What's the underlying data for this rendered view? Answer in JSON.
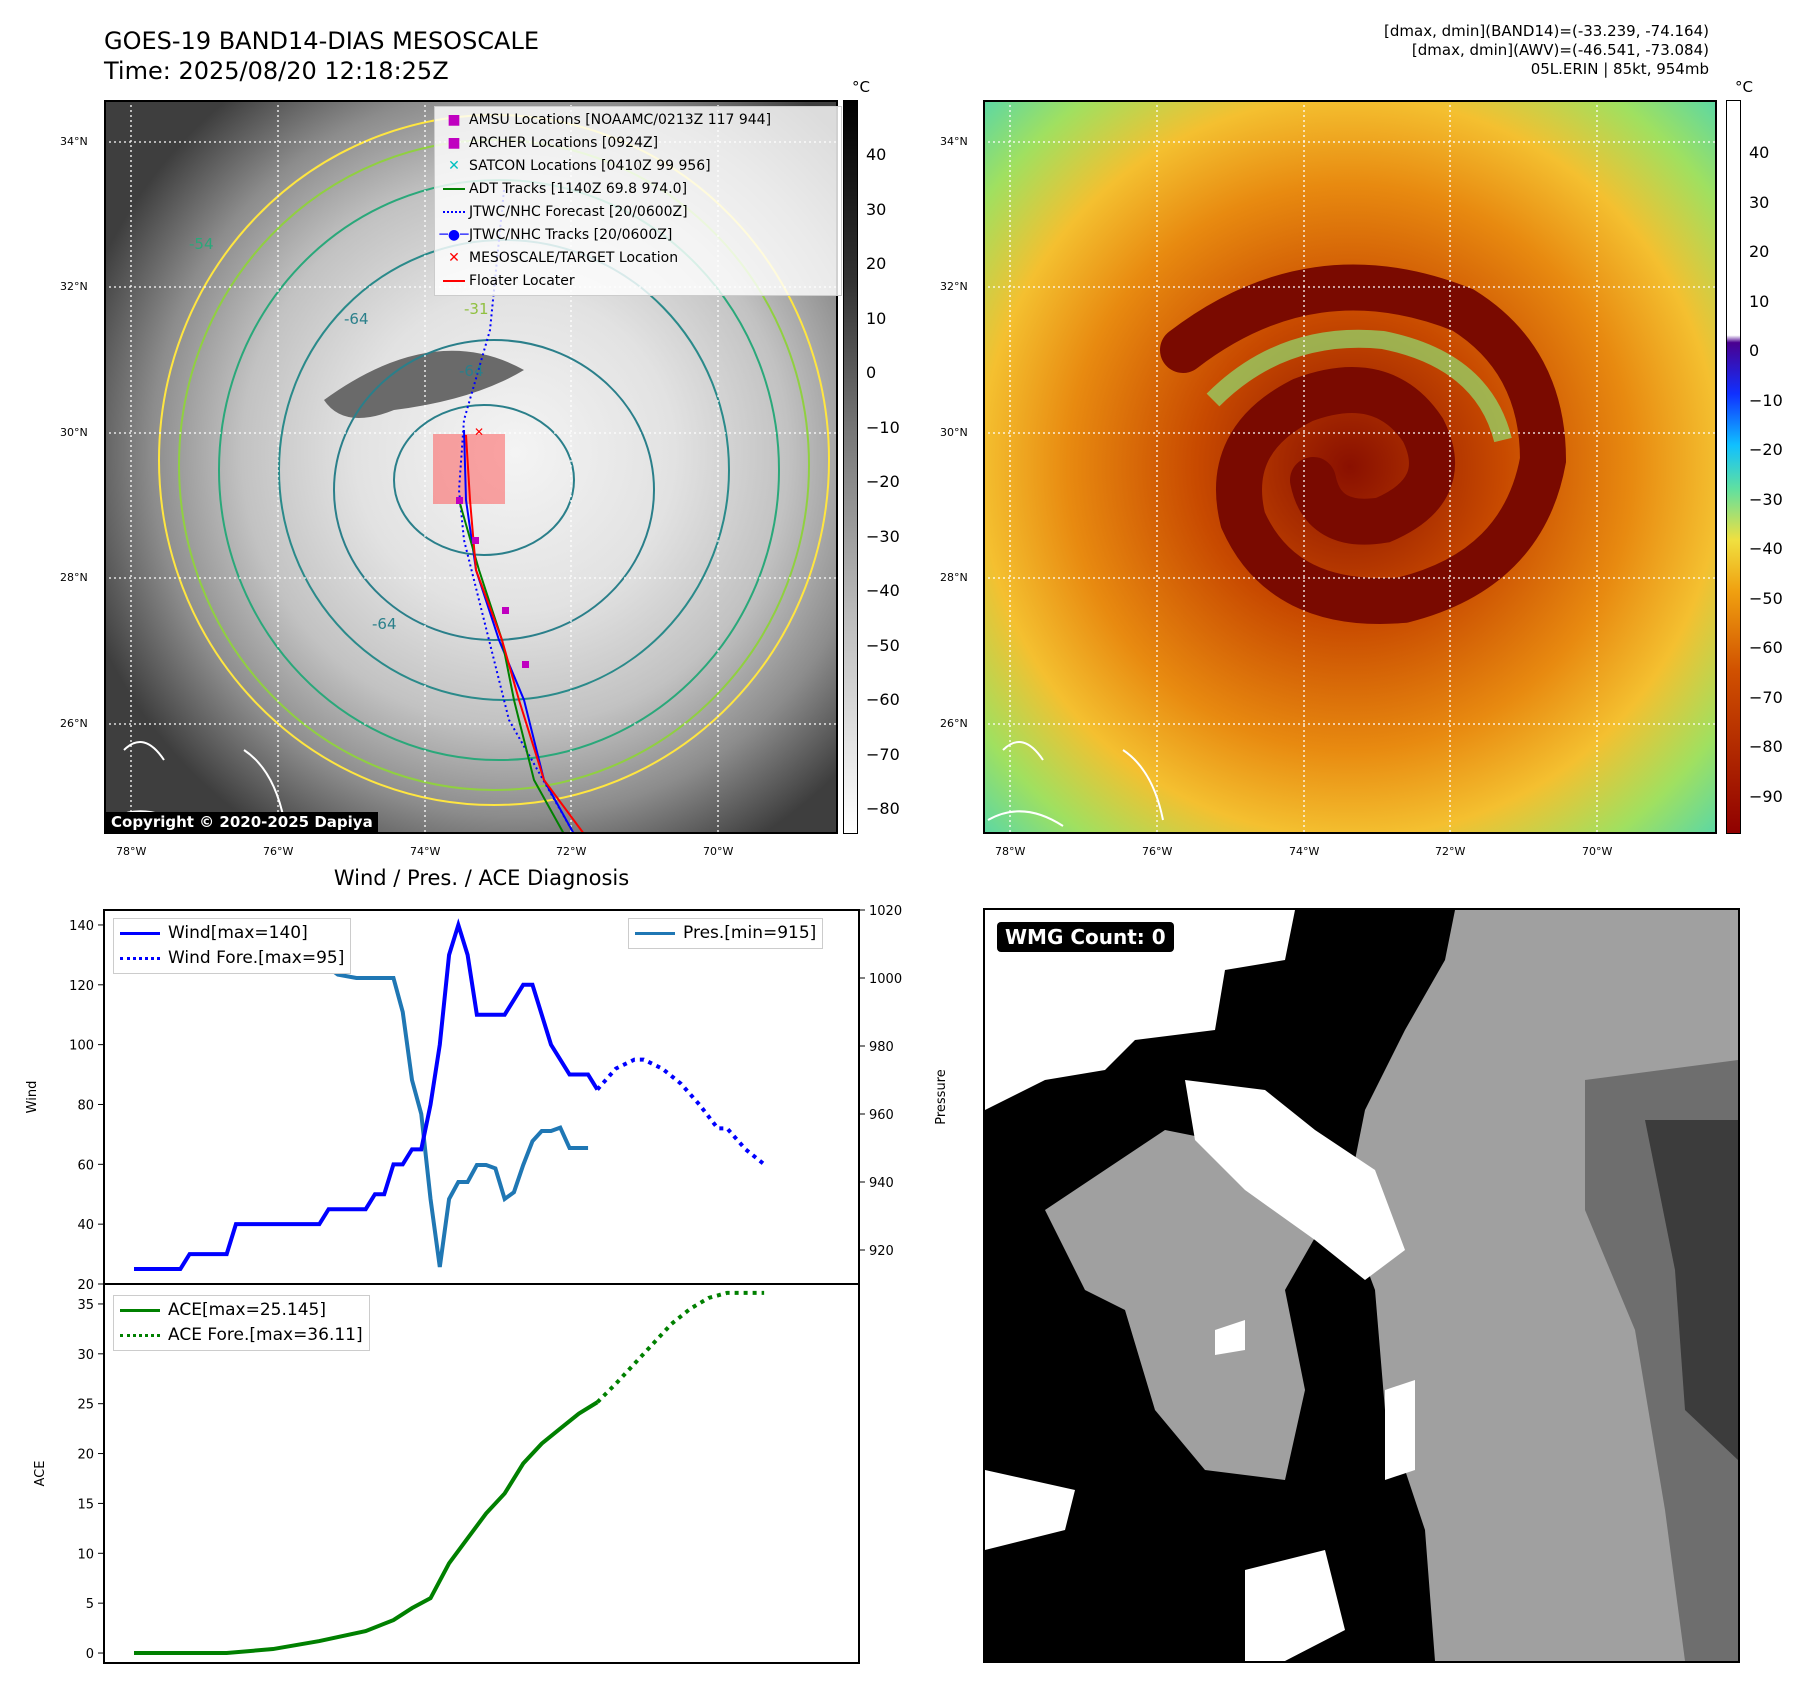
{
  "header": {
    "title_line1": "GOES-19 BAND14-DIAS MESOSCALE",
    "title_line2": "Time: 2025/08/20 12:18:25Z",
    "info_line1": "[dmax, dmin](BAND14)=(-33.239, -74.164)",
    "info_line2": "[dmax, dmin](AWV)=(-46.541, -73.084)",
    "info_line3": "05L.ERIN | 85kt, 954mb"
  },
  "map_ir": {
    "lat_labels": [
      "34°N",
      "32°N",
      "30°N",
      "28°N",
      "26°N"
    ],
    "lon_labels": [
      "78°W",
      "76°W",
      "74°W",
      "72°W",
      "70°W"
    ],
    "copyright": "Copyright © 2020-2025 Dapiya",
    "contour_labels": [
      "-54",
      "-64",
      "-31",
      "-64",
      "-54",
      "-64",
      "-64",
      "-54",
      "-31"
    ],
    "legend": [
      {
        "label": "AMSU Locations [NOAAMC/0213Z 117 944]",
        "color": "#c000c0",
        "marker": "square"
      },
      {
        "label": "ARCHER Locations [0924Z]",
        "color": "#c000c0",
        "marker": "square"
      },
      {
        "label": "SATCON Locations [0410Z 99 956]",
        "color": "#00c0c0",
        "marker": "x"
      },
      {
        "label": "ADT Tracks [1140Z 69.8 974.0]",
        "color": "#008000",
        "marker": "line"
      },
      {
        "label": "JTWC/NHC Forecast [20/0600Z]",
        "color": "#0000ff",
        "marker": "dotted"
      },
      {
        "label": "JTWC/NHC Tracks [20/0600Z]",
        "color": "#0000ff",
        "marker": "line-dot"
      },
      {
        "label": "MESOSCALE/TARGET Location",
        "color": "#ff0000",
        "marker": "x"
      },
      {
        "label": "Floater Locater",
        "color": "#ff0000",
        "marker": "line"
      }
    ],
    "colorbar_unit": "°C",
    "colorbar_ticks": [
      "40",
      "30",
      "20",
      "10",
      "0",
      "−10",
      "−20",
      "−30",
      "−40",
      "−50",
      "−60",
      "−70",
      "−80"
    ]
  },
  "map_wv": {
    "lat_labels": [
      "34°N",
      "32°N",
      "30°N",
      "28°N",
      "26°N"
    ],
    "lon_labels": [
      "78°W",
      "76°W",
      "74°W",
      "72°W",
      "70°W"
    ],
    "colorbar_unit": "°C",
    "colorbar_ticks": [
      "40",
      "30",
      "20",
      "10",
      "0",
      "−10",
      "−20",
      "−30",
      "−40",
      "−50",
      "−60",
      "−70",
      "−80",
      "−90"
    ]
  },
  "wmg": {
    "badge": "WMG Count: 0"
  },
  "chart_data": [
    {
      "type": "line",
      "title": "Wind / Pres. / ACE Diagnosis",
      "ylabel": "Wind",
      "ylabel_right": "Pressure",
      "ylim": [
        20,
        145
      ],
      "ylim_right": [
        910,
        1020
      ],
      "yticks": [
        "140",
        "120",
        "100",
        "80",
        "60",
        "40",
        "20"
      ],
      "yticks_right": [
        "1020",
        "1000",
        "980",
        "960",
        "940",
        "920"
      ],
      "series": [
        {
          "name": "Wind[max=140]",
          "color": "#0000ff",
          "style": "solid",
          "x": [
            0,
            5,
            6,
            10,
            11,
            15,
            16,
            20,
            21,
            25,
            26,
            27,
            28,
            29,
            30,
            31,
            32,
            33,
            34,
            35,
            36,
            37,
            38,
            40,
            41,
            42,
            43,
            45,
            46,
            47,
            48,
            49,
            50
          ],
          "values": [
            25,
            25,
            30,
            30,
            40,
            40,
            40,
            40,
            45,
            45,
            50,
            50,
            60,
            60,
            65,
            65,
            80,
            100,
            130,
            140,
            130,
            110,
            110,
            110,
            115,
            120,
            120,
            100,
            95,
            90,
            90,
            90,
            85
          ]
        },
        {
          "name": "Wind Fore.[max=95]",
          "color": "#0000ff",
          "style": "dotted",
          "x": [
            50,
            52,
            54,
            55,
            57,
            59,
            61,
            63,
            64,
            66,
            68
          ],
          "values": [
            85,
            92,
            95,
            95,
            92,
            87,
            80,
            72,
            72,
            65,
            60
          ]
        },
        {
          "name": "Pres.[min=915]",
          "color": "#1f77b4",
          "style": "solid",
          "x": [
            0,
            1,
            2,
            3,
            5,
            8,
            10,
            12,
            14,
            15,
            16,
            17,
            18,
            19,
            20,
            21,
            22,
            24,
            26,
            28,
            29,
            30,
            31,
            32,
            33,
            34,
            35,
            36,
            37,
            38,
            39,
            40,
            41,
            42,
            43,
            44,
            45,
            46,
            47,
            48,
            49
          ],
          "values": [
            1016,
            1016,
            1012,
            1010,
            1009,
            1009,
            1008,
            1007,
            1006,
            1005,
            1005,
            1006,
            1005,
            1003,
            1003,
            1003,
            1001,
            1000,
            1000,
            1000,
            990,
            970,
            960,
            935,
            915,
            935,
            940,
            940,
            945,
            945,
            944,
            935,
            937,
            945,
            952,
            955,
            955,
            956,
            950,
            950,
            950
          ]
        }
      ],
      "legend_left": [
        "Wind[max=140]",
        "Wind Fore.[max=95]"
      ],
      "legend_right": [
        "Pres.[min=915]"
      ]
    },
    {
      "type": "line",
      "ylabel": "ACE",
      "ylim": [
        -1,
        37
      ],
      "yticks": [
        "35",
        "30",
        "25",
        "20",
        "15",
        "10",
        "5",
        "0"
      ],
      "series": [
        {
          "name": "ACE[max=25.145]",
          "color": "#008000",
          "style": "solid",
          "x": [
            0,
            5,
            10,
            15,
            20,
            25,
            28,
            30,
            32,
            34,
            36,
            38,
            40,
            42,
            44,
            46,
            48,
            50
          ],
          "values": [
            0,
            0,
            0,
            0.4,
            1.2,
            2.2,
            3.3,
            4.5,
            5.5,
            9,
            11.5,
            14,
            16,
            19,
            21,
            22.5,
            24,
            25.145
          ]
        },
        {
          "name": "ACE Fore.[max=36.11]",
          "color": "#008000",
          "style": "dotted",
          "x": [
            50,
            52,
            54,
            56,
            58,
            60,
            62,
            64,
            66,
            68
          ],
          "values": [
            25.145,
            27,
            29,
            31,
            33,
            34.5,
            35.6,
            36.11,
            36.11,
            36.11
          ]
        }
      ],
      "legend": [
        "ACE[max=25.145]",
        "ACE Fore.[max=36.11]"
      ]
    }
  ]
}
